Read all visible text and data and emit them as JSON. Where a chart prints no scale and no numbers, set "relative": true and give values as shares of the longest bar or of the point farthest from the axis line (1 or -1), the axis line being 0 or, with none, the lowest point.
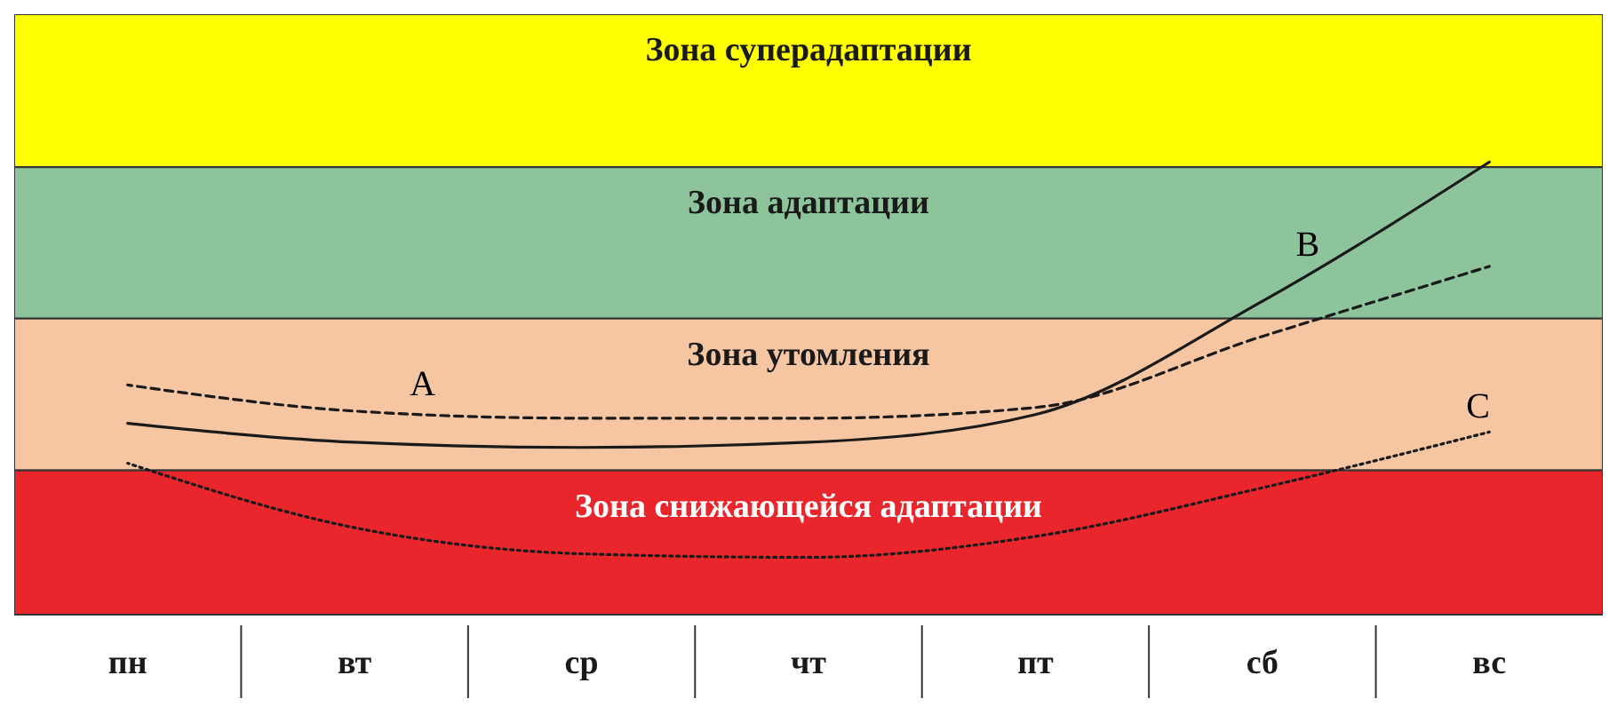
{
  "chart_data": {
    "type": "line",
    "relative": true,
    "categories": [
      "пн",
      "вт",
      "ср",
      "чт",
      "пт",
      "сб",
      "вс"
    ],
    "series": [
      {
        "name": "A",
        "color": "#1a1a1a",
        "line_style": "dashed",
        "values": [
          0.436,
          0.37,
          0.352,
          0.352,
          0.379,
          0.559,
          0.736
        ]
      },
      {
        "name": "B",
        "color": "#1a1a1a",
        "line_style": "solid",
        "values": [
          0.339,
          0.291,
          0.278,
          0.291,
          0.361,
          0.648,
          1
        ]
      },
      {
        "name": "C",
        "color": "#1a1a1a",
        "line_style": "dotted",
        "values": [
          0.238,
          0.075,
          0.009,
          0,
          0.053,
          0.176,
          0.317
        ]
      }
    ],
    "bands": [
      {
        "axis": "y",
        "from": 0.987,
        "to": 1.374,
        "label": "Зона суперадаптации",
        "color": "#ffff00"
      },
      {
        "axis": "y",
        "from": 0.604,
        "to": 0.987,
        "label": "Зона адаптации",
        "color": "#8ec49b"
      },
      {
        "axis": "y",
        "from": 0.22,
        "to": 0.604,
        "label": "Зона утомления",
        "color": "#f6c5a2"
      },
      {
        "axis": "y",
        "from": -0.145,
        "to": 0.22,
        "label": "Зона снижающейся адаптации",
        "color": "#e9262b"
      }
    ]
  }
}
